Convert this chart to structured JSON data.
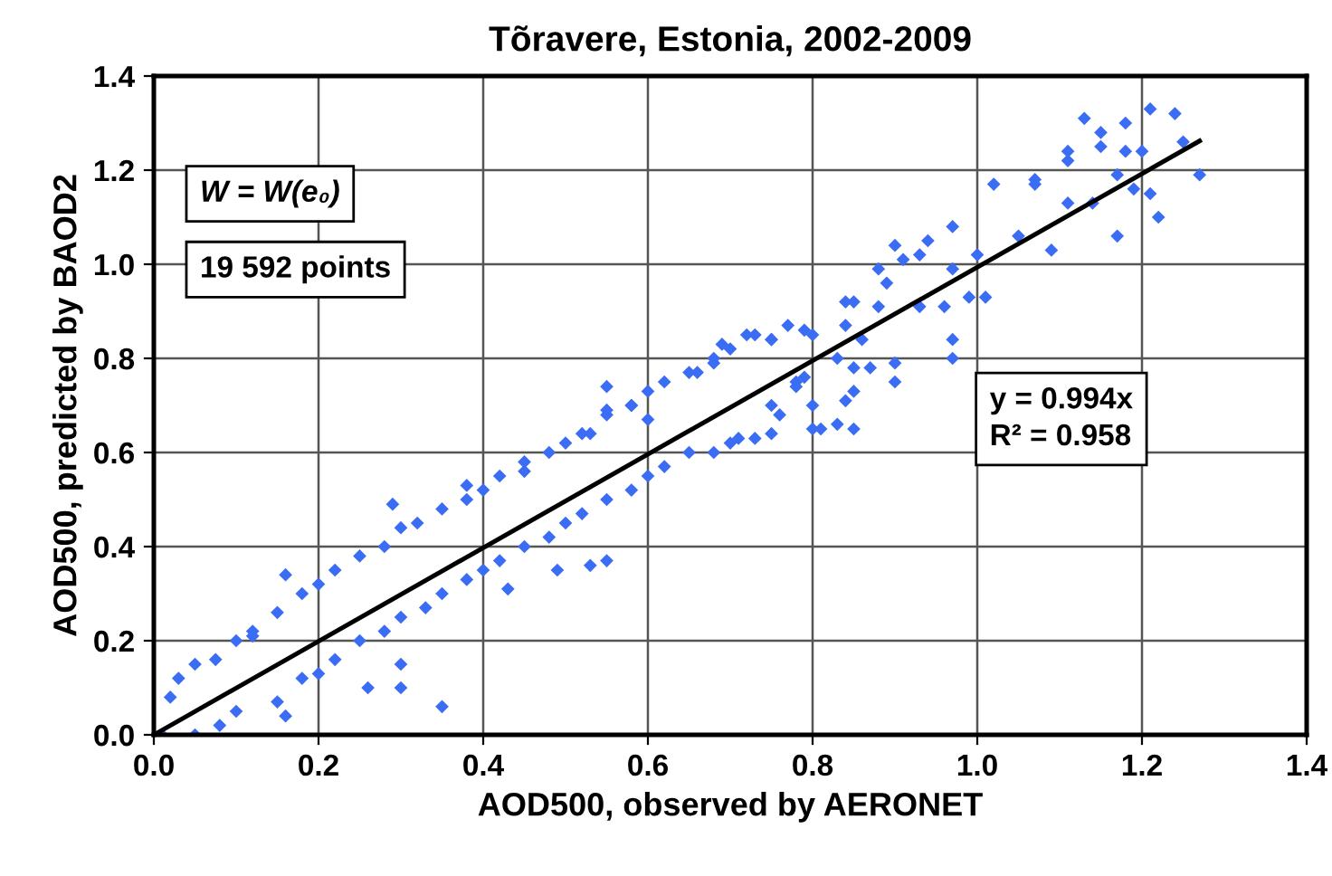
{
  "chart_data": {
    "type": "scatter",
    "title": "Tõravere, Estonia, 2002-2009",
    "xlabel": "AOD500, observed by AERONET",
    "ylabel": "AOD500, predicted by BAOD2",
    "xlim": [
      0,
      1.4
    ],
    "ylim": [
      0,
      1.4
    ],
    "xticks": [
      {
        "value": 0,
        "label": "0.0"
      },
      {
        "value": 0.2,
        "label": "0.2"
      },
      {
        "value": 0.4,
        "label": "0.4"
      },
      {
        "value": 0.6,
        "label": "0.6"
      },
      {
        "value": 0.8,
        "label": "0.8"
      },
      {
        "value": 1.0,
        "label": "1.0"
      },
      {
        "value": 1.2,
        "label": "1.2"
      },
      {
        "value": 1.4,
        "label": "1.4"
      }
    ],
    "yticks": [
      {
        "value": 0,
        "label": "0.0"
      },
      {
        "value": 0.2,
        "label": "0.2"
      },
      {
        "value": 0.4,
        "label": "0.4"
      },
      {
        "value": 0.6,
        "label": "0.6"
      },
      {
        "value": 0.8,
        "label": "0.8"
      },
      {
        "value": 1.0,
        "label": "1.0"
      },
      {
        "value": 1.2,
        "label": "1.2"
      },
      {
        "value": 1.4,
        "label": "1.4"
      }
    ],
    "grid": true,
    "legend": false,
    "annotations": [
      "W = W(e₀)",
      "19 592 points",
      "y = 0.994x\nR² = 0.958"
    ],
    "series": [
      {
        "type": "scatter",
        "color": "#3a6cf4",
        "marker": "diamond",
        "x": [
          0.01,
          0.02,
          0.03,
          0.05,
          0.05,
          0.08,
          0.1,
          0.1,
          0.12,
          0.15,
          0.15,
          0.18,
          0.18,
          0.2,
          0.2,
          0.22,
          0.22,
          0.25,
          0.25,
          0.28,
          0.28,
          0.3,
          0.3,
          0.32,
          0.33,
          0.35,
          0.35,
          0.38,
          0.38,
          0.4,
          0.4,
          0.42,
          0.42,
          0.45,
          0.45,
          0.48,
          0.48,
          0.5,
          0.5,
          0.52,
          0.52,
          0.55,
          0.55,
          0.58,
          0.58,
          0.6,
          0.6,
          0.62,
          0.62,
          0.65,
          0.65,
          0.68,
          0.68,
          0.7,
          0.7,
          0.72,
          0.75,
          0.75,
          0.78,
          0.8,
          0.8,
          0.83,
          0.85,
          0.69,
          0.55,
          0.35,
          0.16,
          0.29,
          0.38,
          0.45,
          0.53,
          0.55,
          0.49,
          0.43,
          0.3,
          0.3,
          0.26,
          0.16,
          0.075,
          0.12,
          0.55,
          0.58,
          0.53,
          0.6,
          0.66,
          0.68,
          1.13,
          1.21,
          1.24,
          1.18,
          1.15,
          1.11,
          1.11,
          1.15,
          1.18,
          1.2,
          1.25,
          1.27,
          1.02,
          1.07,
          1.07,
          1.11,
          1.14,
          1.17,
          1.19,
          1.21,
          1.22,
          1.17,
          1.09,
          1.05,
          0.97,
          0.94,
          1.0,
          0.97,
          0.99,
          1.01,
          0.97,
          0.97,
          0.9,
          0.9,
          0.9,
          0.91,
          0.88,
          0.89,
          0.93,
          0.84,
          0.85,
          0.84,
          0.88,
          0.93,
          0.96,
          0.8,
          0.81,
          0.83,
          0.85,
          0.85,
          0.84,
          0.87,
          0.86,
          0.79,
          0.77,
          0.73,
          0.75,
          0.76,
          0.75,
          0.73,
          0.78,
          0.71,
          0.79
        ],
        "values": [
          0.0,
          0.08,
          0.12,
          0.15,
          0.0,
          0.02,
          0.2,
          0.05,
          0.22,
          0.07,
          0.26,
          0.3,
          0.12,
          0.32,
          0.13,
          0.35,
          0.16,
          0.38,
          0.2,
          0.4,
          0.22,
          0.44,
          0.25,
          0.45,
          0.27,
          0.48,
          0.3,
          0.5,
          0.33,
          0.52,
          0.35,
          0.55,
          0.37,
          0.58,
          0.4,
          0.6,
          0.42,
          0.62,
          0.45,
          0.64,
          0.47,
          0.68,
          0.5,
          0.7,
          0.52,
          0.73,
          0.55,
          0.75,
          0.57,
          0.77,
          0.6,
          0.8,
          0.6,
          0.82,
          0.62,
          0.85,
          0.7,
          0.84,
          0.75,
          0.85,
          0.7,
          0.8,
          0.78,
          0.83,
          0.74,
          0.06,
          0.34,
          0.49,
          0.53,
          0.56,
          0.36,
          0.37,
          0.35,
          0.31,
          0.15,
          0.1,
          0.1,
          0.04,
          0.16,
          0.21,
          0.69,
          0.7,
          0.64,
          0.67,
          0.77,
          0.79,
          1.31,
          1.33,
          1.32,
          1.3,
          1.28,
          1.24,
          1.22,
          1.25,
          1.24,
          1.24,
          1.26,
          1.19,
          1.17,
          1.18,
          1.17,
          1.13,
          1.13,
          1.19,
          1.16,
          1.15,
          1.1,
          1.06,
          1.03,
          1.06,
          1.08,
          1.05,
          1.02,
          0.99,
          0.93,
          0.93,
          0.84,
          0.8,
          0.79,
          0.75,
          1.04,
          1.01,
          0.99,
          0.96,
          1.02,
          0.92,
          0.92,
          0.87,
          0.91,
          0.91,
          0.91,
          0.65,
          0.65,
          0.66,
          0.65,
          0.73,
          0.71,
          0.78,
          0.84,
          0.86,
          0.87,
          0.85,
          0.84,
          0.68,
          0.64,
          0.63,
          0.74,
          0.63,
          0.76
        ]
      },
      {
        "type": "line",
        "color": "#000000",
        "marker": "none",
        "x": [
          0,
          1.27
        ],
        "values": [
          0,
          1.262
        ]
      }
    ]
  }
}
